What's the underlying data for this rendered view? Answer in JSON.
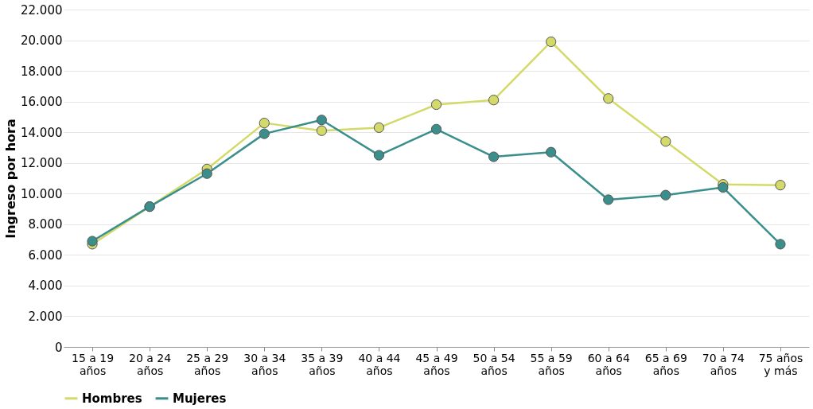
{
  "chart_data": {
    "type": "line",
    "ylabel": "Ingreso por hora",
    "categories": [
      "15 a 19\naños",
      "20 a 24\naños",
      "25 a 29\naños",
      "30 a 34\naños",
      "35 a 39\naños",
      "40 a 44\naños",
      "45 a 49\naños",
      "50 a 54\naños",
      "55 a 59\naños",
      "60 a 64\naños",
      "65 a 69\naños",
      "70 a 74\naños",
      "75 años\ny más"
    ],
    "series": [
      {
        "name": "Hombres",
        "color": "#d4da6a",
        "values": [
          6700,
          9150,
          11600,
          14600,
          14100,
          14300,
          15800,
          16100,
          19900,
          16200,
          13400,
          10600,
          10550
        ]
      },
      {
        "name": "Mujeres",
        "color": "#3a8f8c",
        "values": [
          6900,
          9150,
          11300,
          13900,
          14800,
          12500,
          14200,
          12400,
          12700,
          9600,
          9900,
          10400,
          6700
        ]
      }
    ],
    "ylim": [
      0,
      22000
    ],
    "yticks": [
      0,
      {
        "value": 2000,
        "label": "2.000"
      },
      {
        "value": 4000,
        "label": "4.000"
      },
      {
        "value": 6000,
        "label": "6.000"
      },
      {
        "value": 8000,
        "label": "8.000"
      },
      {
        "value": 10000,
        "label": "10.000"
      },
      {
        "value": 12000,
        "label": "12.000"
      },
      {
        "value": 14000,
        "label": "14.000"
      },
      {
        "value": 16000,
        "label": "16.000"
      },
      {
        "value": 18000,
        "label": "18.000"
      },
      {
        "value": 20000,
        "label": "20.000"
      },
      {
        "value": 22000,
        "label": "22.000"
      }
    ],
    "grid": "y",
    "legend": "bottom",
    "marker": "circle",
    "line_style": "solid"
  }
}
